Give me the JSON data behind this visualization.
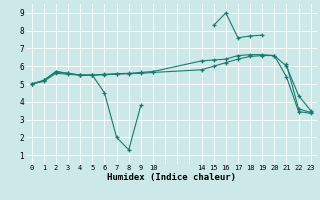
{
  "xlabel": "Humidex (Indice chaleur)",
  "bg_color": "#cce8e8",
  "line_color": "#1a7a6e",
  "x_ticks_pos": [
    0,
    1,
    2,
    3,
    4,
    5,
    6,
    7,
    8,
    9,
    10,
    14,
    15,
    16,
    17,
    18,
    19,
    20,
    21,
    22,
    23
  ],
  "x_ticks_labels": [
    "0",
    "1",
    "2",
    "3",
    "4",
    "5",
    "6",
    "7",
    "8",
    "9",
    "10",
    "14",
    "15",
    "16",
    "17",
    "18",
    "19",
    "20",
    "21",
    "22",
    "23"
  ],
  "ylim": [
    0.5,
    9.5
  ],
  "xlim": [
    -0.5,
    23.5
  ],
  "series": [
    {
      "x": [
        0,
        1,
        2,
        3,
        4,
        5,
        6,
        7,
        8,
        9,
        10,
        14,
        15,
        16,
        17,
        18,
        19,
        20,
        21,
        22,
        23
      ],
      "y": [
        5.0,
        5.2,
        5.7,
        5.6,
        5.5,
        5.5,
        5.55,
        5.58,
        5.6,
        5.65,
        5.7,
        6.3,
        6.35,
        6.4,
        6.6,
        6.65,
        6.65,
        6.6,
        6.0,
        4.35,
        3.5
      ]
    },
    {
      "x": [
        0,
        1,
        2,
        3,
        4,
        5,
        6,
        7,
        8,
        9,
        10,
        14,
        15,
        16,
        17,
        18,
        19,
        20,
        21,
        22,
        23
      ],
      "y": [
        5.0,
        5.2,
        5.7,
        5.6,
        5.5,
        5.5,
        4.5,
        2.0,
        1.3,
        3.8,
        null,
        null,
        8.3,
        9.0,
        7.6,
        7.7,
        7.75,
        null,
        6.1,
        3.6,
        3.4
      ]
    },
    {
      "x": [
        0,
        1,
        2,
        3,
        4,
        5,
        6,
        7,
        8,
        9,
        10,
        14,
        15,
        16,
        17,
        18,
        19,
        20,
        21,
        22,
        23
      ],
      "y": [
        5.0,
        5.15,
        5.6,
        5.55,
        5.5,
        5.5,
        5.52,
        5.55,
        5.58,
        5.6,
        5.65,
        5.8,
        6.0,
        6.2,
        6.4,
        6.55,
        6.6,
        6.6,
        5.4,
        3.45,
        3.35
      ]
    }
  ]
}
